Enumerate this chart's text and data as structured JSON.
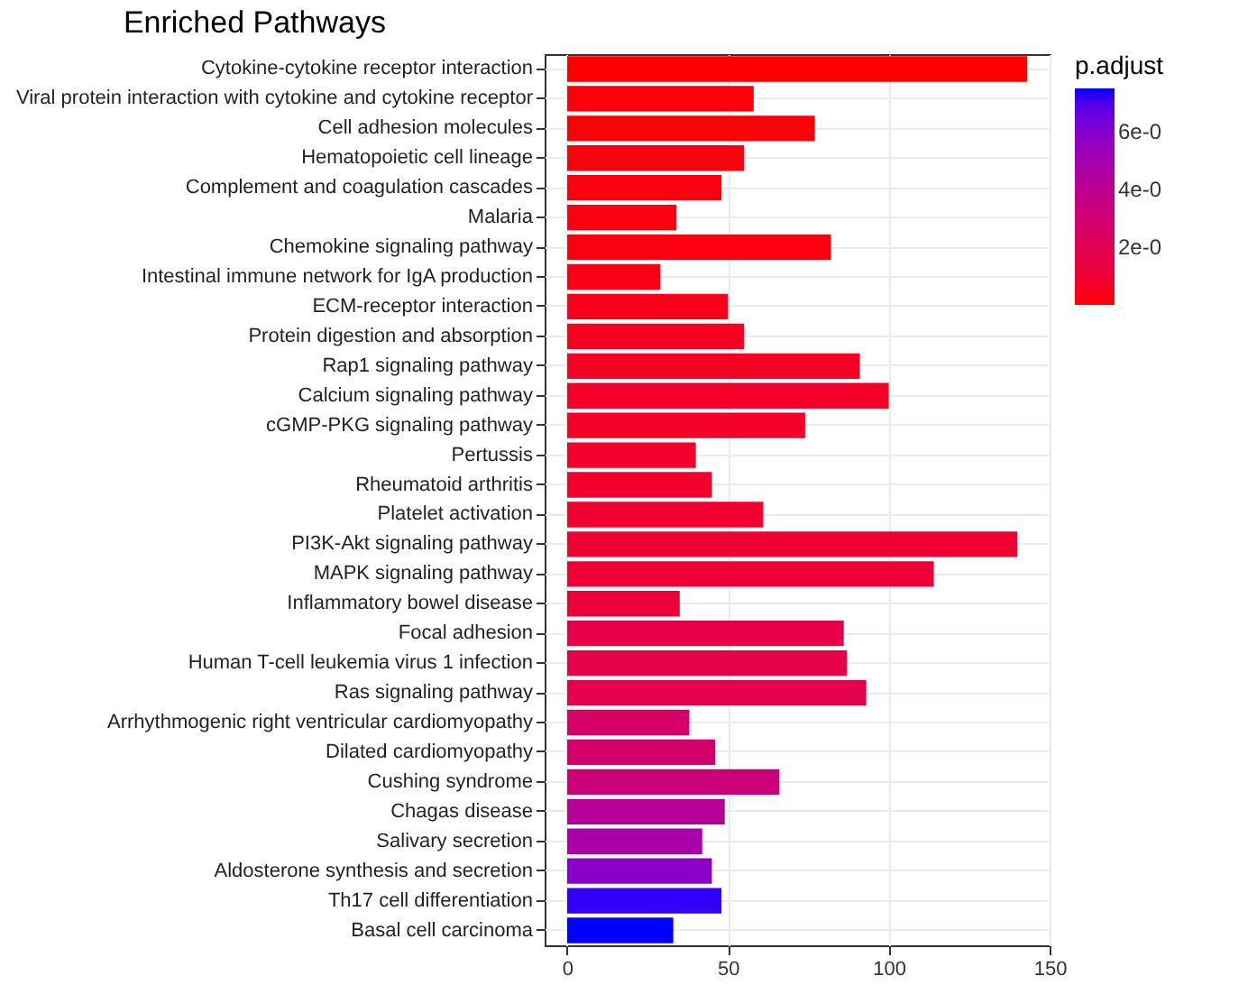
{
  "chart_data": {
    "type": "bar",
    "orientation": "horizontal",
    "title": "Enriched Pathways",
    "clabel": "p.adjust",
    "categories": [
      "Cytokine-cytokine receptor interaction",
      "Viral protein interaction with cytokine and cytokine receptor",
      "Cell adhesion molecules",
      "Hematopoietic cell lineage",
      "Complement and coagulation cascades",
      "Malaria",
      "Chemokine signaling pathway",
      "Intestinal immune network for IgA production",
      "ECM-receptor interaction",
      "Protein digestion and absorption",
      "Rap1 signaling pathway",
      "Calcium signaling pathway",
      "cGMP-PKG signaling pathway",
      "Pertussis",
      "Rheumatoid arthritis",
      "Platelet activation",
      "PI3K-Akt signaling pathway",
      "MAPK signaling pathway",
      "Inflammatory bowel disease",
      "Focal adhesion",
      "Human T-cell leukemia virus 1 infection",
      "Ras signaling pathway",
      "Arrhythmogenic right ventricular cardiomyopathy",
      "Dilated cardiomyopathy",
      "Cushing syndrome",
      "Chagas disease",
      "Salivary secretion",
      "Aldosterone synthesis and secretion",
      "Th17 cell differentiation",
      "Basal cell carcinoma"
    ],
    "values": [
      143,
      58,
      77,
      55,
      48,
      34,
      82,
      29,
      50,
      55,
      91,
      100,
      74,
      40,
      45,
      61,
      140,
      114,
      35,
      86,
      87,
      93,
      38,
      46,
      66,
      49,
      42,
      45,
      48,
      33
    ],
    "cvalues": [
      0.05,
      0.1,
      0.1,
      0.15,
      0.2,
      0.2,
      0.2,
      0.25,
      0.4,
      0.5,
      0.6,
      0.7,
      0.7,
      0.8,
      0.8,
      0.9,
      1.0,
      1.1,
      1.2,
      1.6,
      1.7,
      1.8,
      2.6,
      2.8,
      3.2,
      4.2,
      4.8,
      5.8,
      7.3,
      7.5
    ],
    "clim": [
      0,
      7.5
    ],
    "cticks": [
      {
        "value": 2,
        "label": "2e-0"
      },
      {
        "value": 4,
        "label": "4e-0"
      },
      {
        "value": 6,
        "label": "6e-0"
      }
    ],
    "xlim": [
      -7,
      150
    ],
    "xticks": [
      0,
      50,
      100,
      150
    ],
    "grid": true
  }
}
